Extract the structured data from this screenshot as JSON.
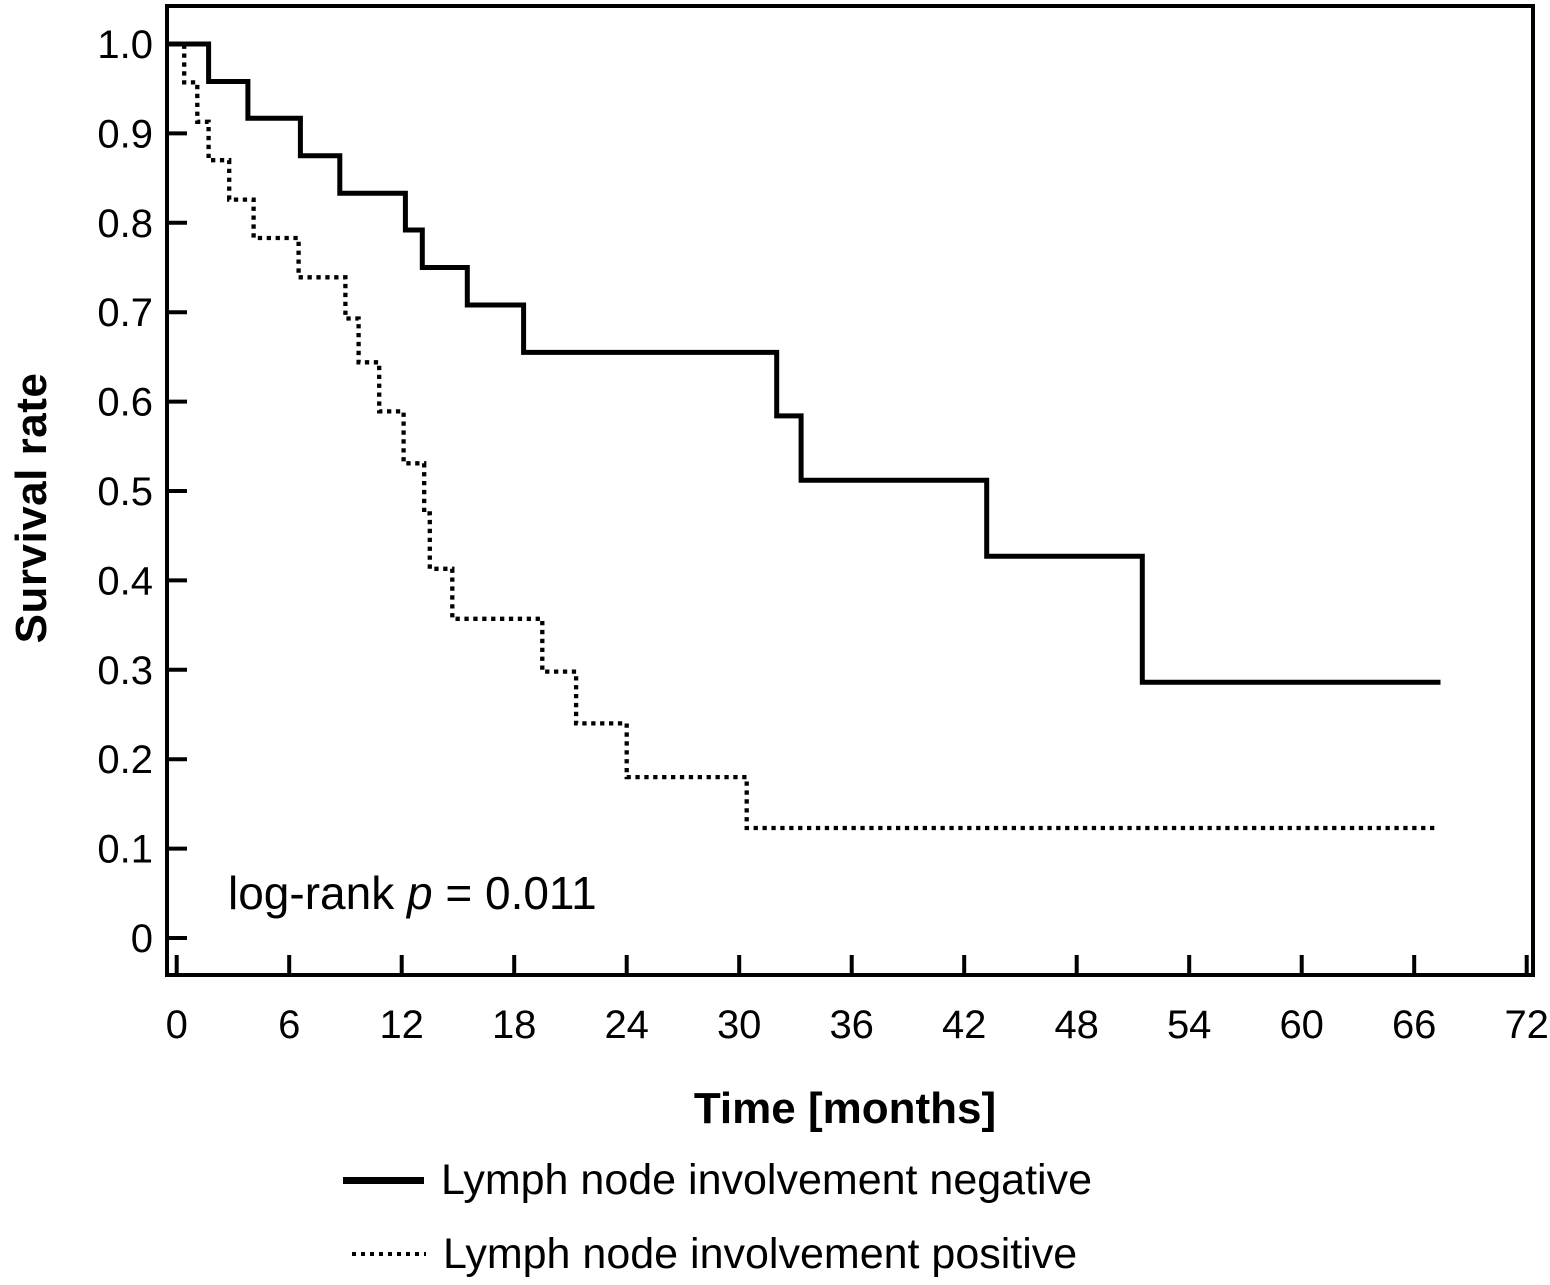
{
  "chart_data": {
    "type": "line",
    "variant": "kaplan_meier_step",
    "title": "",
    "xlabel": "Time [months]",
    "ylabel": "Survival rate",
    "xlim": [
      0,
      72
    ],
    "ylim": [
      0,
      1.0
    ],
    "xticks": [
      0,
      6,
      12,
      18,
      24,
      30,
      36,
      42,
      48,
      54,
      60,
      66,
      72
    ],
    "yticks": [
      {
        "value": 1.0,
        "label": "1.0"
      },
      {
        "value": 0.9,
        "label": "0.9"
      },
      {
        "value": 0.8,
        "label": "0.8"
      },
      {
        "value": 0.7,
        "label": "0.7"
      },
      {
        "value": 0.6,
        "label": "0.6"
      },
      {
        "value": 0.5,
        "label": "0.5"
      },
      {
        "value": 0.4,
        "label": "0.4"
      },
      {
        "value": 0.3,
        "label": "0.3"
      },
      {
        "value": 0.2,
        "label": "0.2"
      },
      {
        "value": 0.1,
        "label": "0.1"
      },
      {
        "value": 0.0,
        "label": "0"
      }
    ],
    "grid": false,
    "legend_position": "bottom",
    "line_color": "#000000",
    "annotation": {
      "prefix": "log-rank ",
      "symbol": "p",
      "suffix": " = 0.011"
    },
    "series": [
      {
        "name": "Lymph node involvement negative",
        "style": "solid",
        "points": [
          [
            0,
            1.0
          ],
          [
            1.7,
            1.0
          ],
          [
            1.7,
            0.958
          ],
          [
            3.8,
            0.958
          ],
          [
            3.8,
            0.917
          ],
          [
            6.6,
            0.917
          ],
          [
            6.6,
            0.875
          ],
          [
            8.7,
            0.875
          ],
          [
            8.7,
            0.833
          ],
          [
            12.2,
            0.833
          ],
          [
            12.2,
            0.792
          ],
          [
            13.1,
            0.792
          ],
          [
            13.1,
            0.75
          ],
          [
            15.5,
            0.75
          ],
          [
            15.5,
            0.708
          ],
          [
            18.5,
            0.708
          ],
          [
            18.5,
            0.655
          ],
          [
            32.0,
            0.655
          ],
          [
            32.0,
            0.584
          ],
          [
            33.3,
            0.584
          ],
          [
            33.3,
            0.512
          ],
          [
            43.2,
            0.512
          ],
          [
            43.2,
            0.427
          ],
          [
            51.5,
            0.427
          ],
          [
            51.5,
            0.286
          ],
          [
            67.4,
            0.286
          ]
        ]
      },
      {
        "name": "Lymph node involvement positive",
        "style": "dotted",
        "points": [
          [
            0,
            1.0
          ],
          [
            0.4,
            1.0
          ],
          [
            0.4,
            0.957
          ],
          [
            1.1,
            0.957
          ],
          [
            1.1,
            0.913
          ],
          [
            1.7,
            0.913
          ],
          [
            1.7,
            0.87
          ],
          [
            2.8,
            0.87
          ],
          [
            2.8,
            0.826
          ],
          [
            4.1,
            0.826
          ],
          [
            4.1,
            0.783
          ],
          [
            6.5,
            0.783
          ],
          [
            6.5,
            0.739
          ],
          [
            9.0,
            0.739
          ],
          [
            9.0,
            0.693
          ],
          [
            9.7,
            0.693
          ],
          [
            9.7,
            0.644
          ],
          [
            10.8,
            0.644
          ],
          [
            10.8,
            0.589
          ],
          [
            12.1,
            0.589
          ],
          [
            12.1,
            0.531
          ],
          [
            13.2,
            0.531
          ],
          [
            13.2,
            0.475
          ],
          [
            13.5,
            0.475
          ],
          [
            13.5,
            0.413
          ],
          [
            14.7,
            0.413
          ],
          [
            14.7,
            0.357
          ],
          [
            19.5,
            0.357
          ],
          [
            19.5,
            0.298
          ],
          [
            21.3,
            0.298
          ],
          [
            21.3,
            0.24
          ],
          [
            24.0,
            0.24
          ],
          [
            24.0,
            0.18
          ],
          [
            30.4,
            0.18
          ],
          [
            30.4,
            0.123
          ],
          [
            67.2,
            0.123
          ]
        ]
      }
    ]
  }
}
